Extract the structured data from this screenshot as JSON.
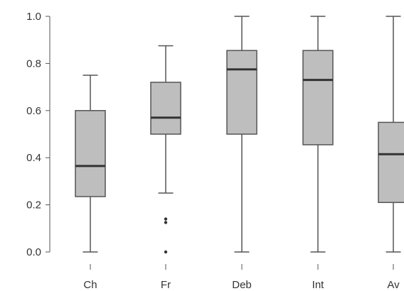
{
  "chart_data": {
    "type": "boxplot",
    "title": "",
    "xlabel": "",
    "ylabel": "",
    "ylim": [
      0,
      1
    ],
    "yticks": [
      "0.0",
      "0.2",
      "0.4",
      "0.6",
      "0.8",
      "1.0"
    ],
    "grid": false,
    "box_color": "#bebebe",
    "categories": [
      "Ch",
      "Fr",
      "Deb",
      "Int",
      "Av"
    ],
    "boxes": [
      {
        "category": "Ch",
        "whisker_low": 0.0,
        "q1": 0.235,
        "median": 0.365,
        "q3": 0.6,
        "whisker_high": 0.75,
        "outliers": []
      },
      {
        "category": "Fr",
        "whisker_low": 0.25,
        "q1": 0.5,
        "median": 0.57,
        "q3": 0.72,
        "whisker_high": 0.875,
        "outliers": [
          0.14,
          0.125,
          0.0
        ]
      },
      {
        "category": "Deb",
        "whisker_low": 0.0,
        "q1": 0.5,
        "median": 0.775,
        "q3": 0.855,
        "whisker_high": 1.0,
        "outliers": []
      },
      {
        "category": "Int",
        "whisker_low": 0.0,
        "q1": 0.455,
        "median": 0.73,
        "q3": 0.855,
        "whisker_high": 1.0,
        "outliers": []
      },
      {
        "category": "Av",
        "whisker_low": 0.0,
        "q1": 0.21,
        "median": 0.415,
        "q3": 0.55,
        "whisker_high": 1.0,
        "outliers": []
      }
    ]
  }
}
